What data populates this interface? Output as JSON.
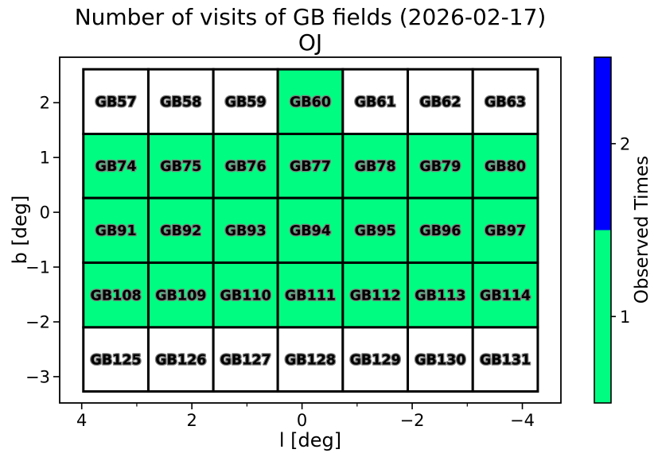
{
  "chart_data": {
    "type": "heatmap",
    "title": "Number of visits of GB fields (2026-02-17)",
    "subtitle": "OJ",
    "xlabel": "l [deg]",
    "ylabel": "b [deg]",
    "x_axis_inverted": true,
    "xlim": [
      4.4,
      -4.7
    ],
    "ylim": [
      -3.48,
      2.83
    ],
    "x_ticks": [
      {
        "value": 4,
        "label": "4"
      },
      {
        "value": 2,
        "label": "2"
      },
      {
        "value": 0,
        "label": "0"
      },
      {
        "value": -2,
        "label": "−2"
      },
      {
        "value": -4,
        "label": "−4"
      }
    ],
    "x_minor_ticks": [
      3,
      1,
      -1,
      -3
    ],
    "y_ticks": [
      {
        "value": 2,
        "label": "2"
      },
      {
        "value": 1,
        "label": "1"
      },
      {
        "value": 0,
        "label": "0"
      },
      {
        "value": -1,
        "label": "−1"
      },
      {
        "value": -2,
        "label": "−2"
      },
      {
        "value": -3,
        "label": "−3"
      }
    ],
    "grid_col_edges_l": [
      3.97,
      2.79,
      1.61,
      0.44,
      -0.74,
      -1.92,
      -3.1,
      -4.28
    ],
    "grid_row_edges_b": [
      2.61,
      1.43,
      0.26,
      -0.92,
      -2.1,
      -3.27
    ],
    "rows": [
      {
        "fields": [
          "GB57",
          "GB58",
          "GB59",
          "GB60",
          "GB61",
          "GB62",
          "GB63"
        ],
        "visits": [
          0,
          0,
          0,
          1,
          0,
          0,
          0
        ]
      },
      {
        "fields": [
          "GB74",
          "GB75",
          "GB76",
          "GB77",
          "GB78",
          "GB79",
          "GB80"
        ],
        "visits": [
          1,
          1,
          1,
          1,
          1,
          1,
          1
        ]
      },
      {
        "fields": [
          "GB91",
          "GB92",
          "GB93",
          "GB94",
          "GB95",
          "GB96",
          "GB97"
        ],
        "visits": [
          1,
          1,
          1,
          1,
          1,
          1,
          1
        ]
      },
      {
        "fields": [
          "GB108",
          "GB109",
          "GB110",
          "GB111",
          "GB112",
          "GB113",
          "GB114"
        ],
        "visits": [
          1,
          1,
          1,
          1,
          1,
          1,
          1
        ]
      },
      {
        "fields": [
          "GB125",
          "GB126",
          "GB127",
          "GB128",
          "GB129",
          "GB130",
          "GB131"
        ],
        "visits": [
          0,
          0,
          0,
          0,
          0,
          0,
          0
        ]
      }
    ],
    "value_colors": {
      "0": "#FFFFFF",
      "1": "#00FC80",
      "2": "#0000FF"
    },
    "cell_border_color": "#000000",
    "field_label_fill": "#FFFFFF",
    "field_label_outline": "#7D7D7D",
    "grid_on": false,
    "colorbar": {
      "label": "Observed Times",
      "position": "right",
      "range": [
        0.5,
        2.5
      ],
      "segments": [
        {
          "value": 2,
          "color": "#0000FF"
        },
        {
          "value": 1,
          "color": "#00FC80"
        }
      ],
      "ticks": [
        {
          "value": 2,
          "label": "2"
        },
        {
          "value": 1,
          "label": "1"
        }
      ]
    }
  }
}
